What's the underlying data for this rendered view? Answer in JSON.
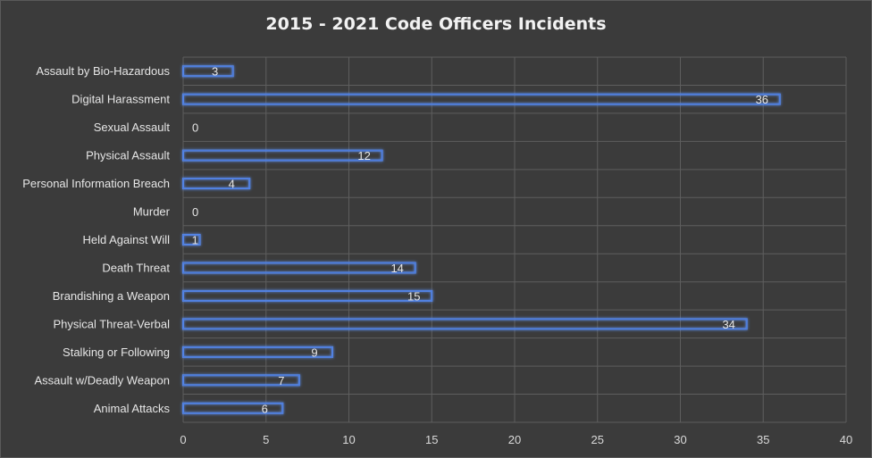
{
  "chart_data": {
    "type": "bar",
    "orientation": "horizontal",
    "title": "2015 - 2021 Code Officers Incidents",
    "categories": [
      "Assault by  Bio-Hazardous",
      "Digital Harassment",
      "Sexual Assault",
      "Physical Assault",
      "Personal Information Breach",
      "Murder",
      "Held Against Will",
      "Death Threat",
      "Brandishing a Weapon",
      "Physical Threat-Verbal",
      "Stalking or Following",
      "Assault w/Deadly Weapon",
      "Animal Attacks"
    ],
    "values": [
      3,
      36,
      0,
      12,
      4,
      0,
      1,
      14,
      15,
      34,
      9,
      7,
      6
    ],
    "xlim": [
      0,
      40
    ],
    "x_ticks": [
      "0",
      "5",
      "10",
      "15",
      "20",
      "25",
      "30",
      "35",
      "40"
    ],
    "grid": true,
    "data_labels": true,
    "colors": {
      "background": "#3b3b3b",
      "bar_outline": "#4a78d8",
      "bar_glow": "#5b8ef0",
      "grid": "#5e5e5e",
      "text": "#e6e6e6"
    }
  }
}
